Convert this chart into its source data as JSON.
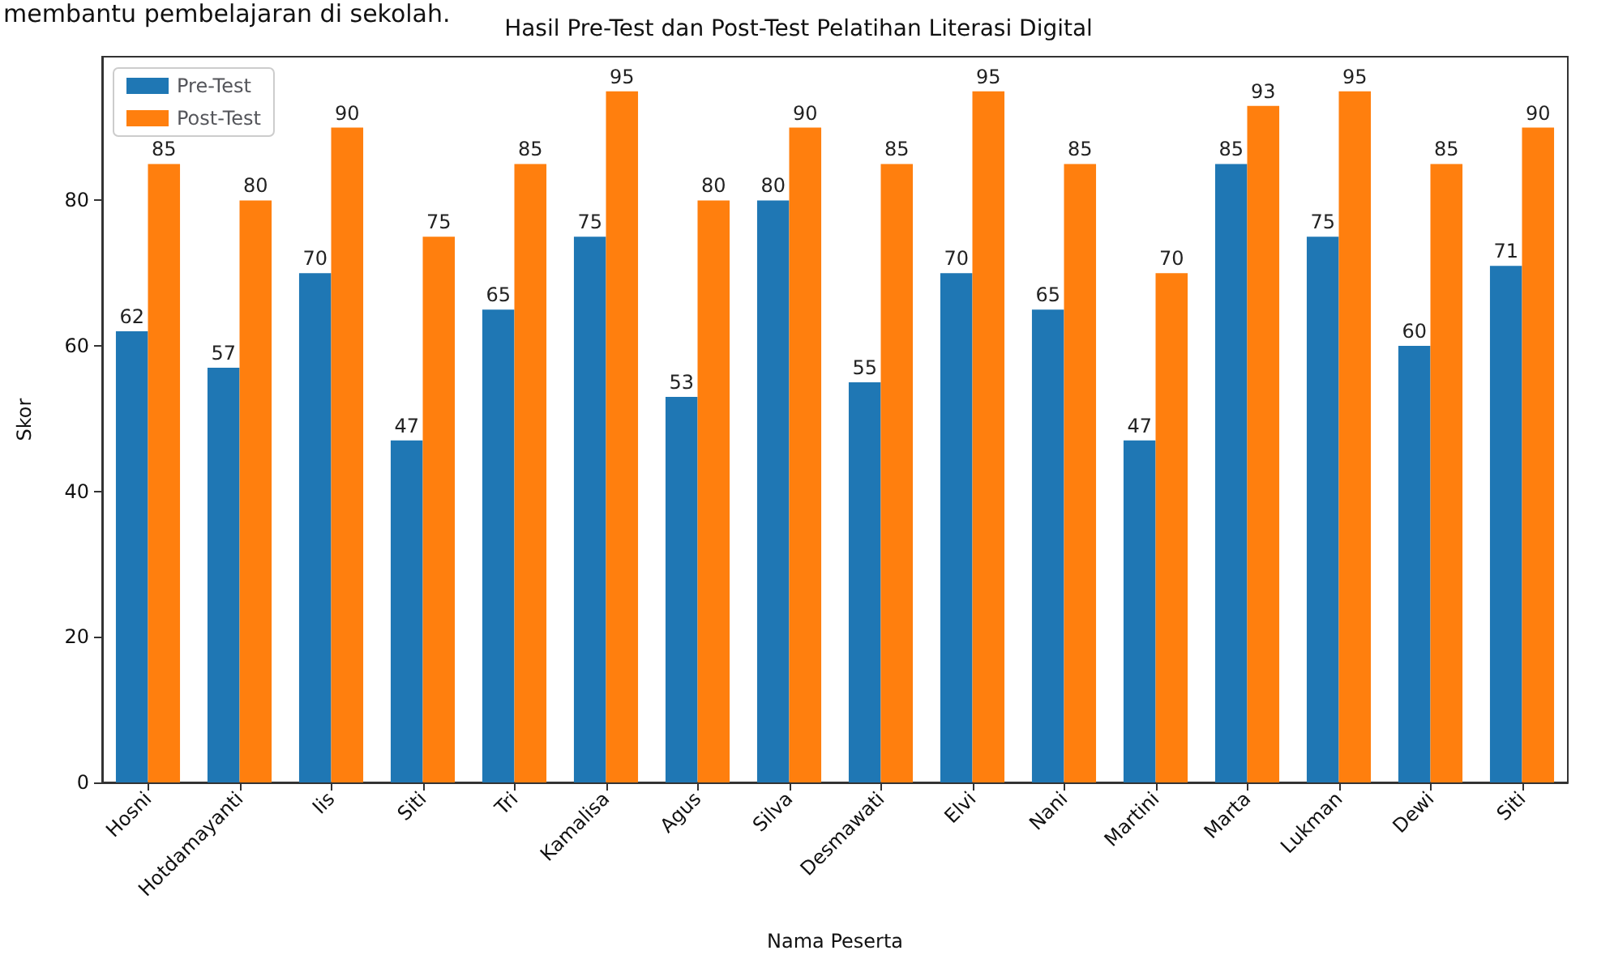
{
  "chart_data": {
    "type": "bar",
    "title": "Hasil Pre-Test dan Post-Test Pelatihan Literasi Digital",
    "xlabel": "Nama Peserta",
    "ylabel": "Skor",
    "annotations": [
      "membantu pembelajaran di sekolah."
    ],
    "categories": [
      "Hosni",
      "Hotdamayanti",
      "Iis",
      "Siti",
      "Tri",
      "Kamalisa",
      "Agus",
      "Silva",
      "Desmawati",
      "Elvi",
      "Nani",
      "Martini",
      "Marta",
      "Lukman",
      "Dewi",
      "Siti"
    ],
    "series": [
      {
        "name": "Pre-Test",
        "color": "#1f77b4",
        "values": [
          62,
          57,
          70,
          47,
          65,
          75,
          53,
          80,
          55,
          70,
          65,
          47,
          85,
          75,
          60,
          71
        ]
      },
      {
        "name": "Post-Test",
        "color": "#ff7f0e",
        "values": [
          85,
          80,
          90,
          75,
          85,
          95,
          80,
          90,
          85,
          95,
          85,
          70,
          93,
          95,
          85,
          90
        ]
      }
    ],
    "ylim": [
      0,
      99.75
    ],
    "yticks": [
      0,
      20,
      40,
      60,
      80
    ],
    "data_labels": true,
    "legend": "top left",
    "grid": false
  }
}
